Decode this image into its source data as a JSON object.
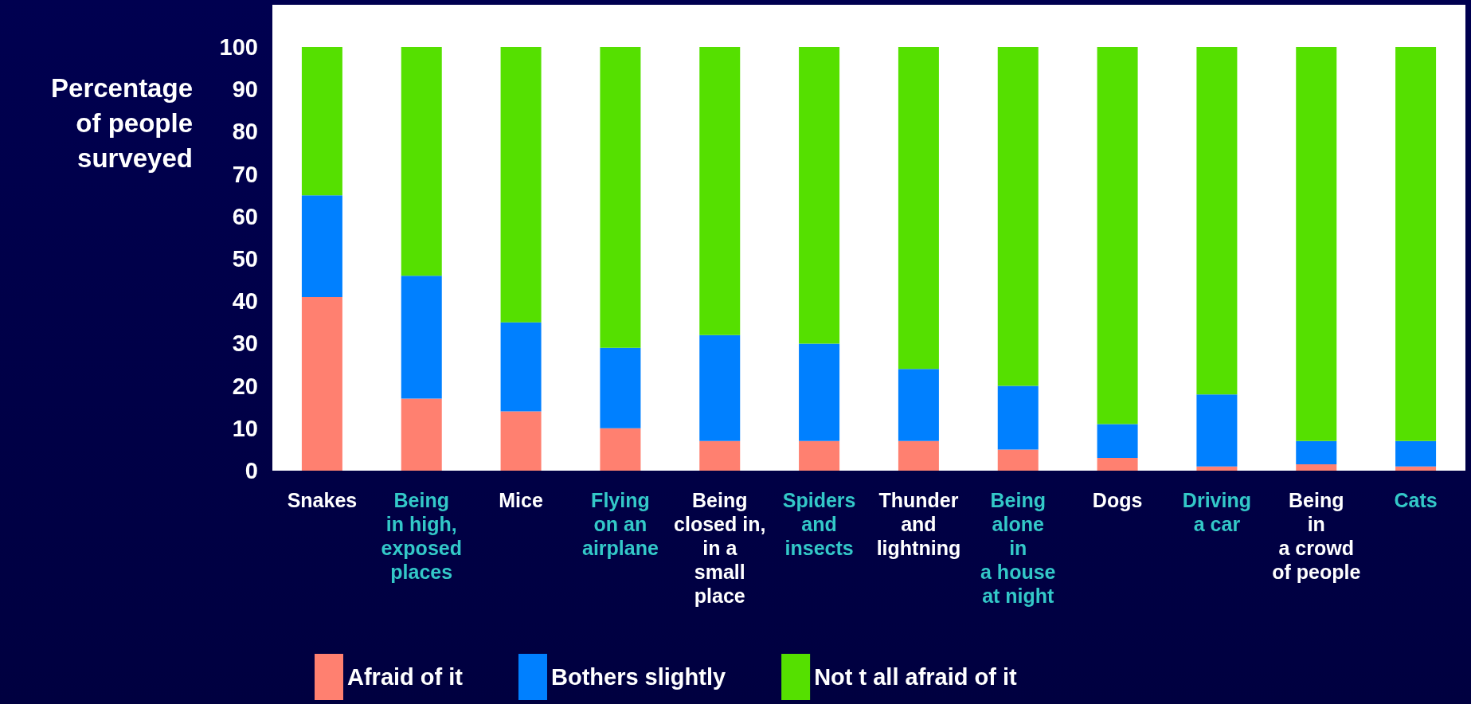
{
  "chart_data": {
    "type": "bar",
    "stacked": true,
    "ylabel": "Percentage\nof people\nsurveyed",
    "categories": [
      "Snakes",
      "Being\nin high,\nexposed\nplaces",
      "Mice",
      "Flying\non an\nairplane",
      "Being\nclosed in,\nin a\nsmall\nplace",
      "Spiders\nand\ninsects",
      "Thunder\nand\nlightning",
      "Being\nalone\nin\na house\nat night",
      "Dogs",
      "Driving\na car",
      "Being\nin\na crowd\nof people",
      "Cats"
    ],
    "series": [
      {
        "name": "Afraid of it",
        "color": "#ff8070",
        "values": [
          41,
          17,
          14,
          10,
          7,
          7,
          7,
          5,
          3,
          1,
          1.5,
          1
        ]
      },
      {
        "name": "Bothers slightly",
        "color": "#0080ff",
        "values": [
          24,
          29,
          21,
          19,
          25,
          23,
          17,
          15,
          8,
          17,
          5.5,
          6
        ]
      },
      {
        "name": "Not t all afraid of it",
        "color": "#55e000",
        "values": [
          35,
          54,
          65,
          71,
          68,
          70,
          76,
          80,
          89,
          82,
          93,
          93
        ]
      }
    ],
    "ylim": [
      0,
      100
    ],
    "yticks": [
      0,
      10,
      20,
      30,
      40,
      50,
      60,
      70,
      80,
      90,
      100
    ],
    "grid": false,
    "legend": "bottom"
  }
}
